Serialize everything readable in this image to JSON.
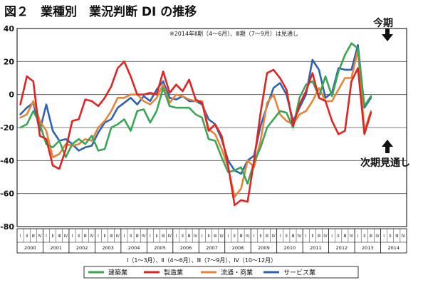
{
  "chart_data": {
    "type": "line",
    "title": "図２　業種別　業況判断 DI の推移",
    "note": "※2014年Ⅱ期（4〜6月）、Ⅲ期（7〜9月）は見通し",
    "ylim": [
      -80,
      40
    ],
    "yticks": [
      40,
      20,
      0,
      -20,
      -40,
      -60,
      -80
    ],
    "quarter_labels": [
      "Ⅰ",
      "Ⅱ",
      "Ⅲ",
      "Ⅳ"
    ],
    "years": [
      "2000",
      "2001",
      "2002",
      "2003",
      "2004",
      "2005",
      "2006",
      "2007",
      "2008",
      "2009",
      "2010",
      "2011",
      "2012",
      "2013",
      "2014"
    ],
    "caption": "Ⅰ（1〜3月）、Ⅱ（4〜6月）、Ⅲ（7〜9月）、Ⅳ（10〜12月）",
    "annotations": {
      "top": "今期",
      "bottom": "次期見通し"
    },
    "series": [
      {
        "name": "建築業",
        "color": "#3aa655",
        "values": [
          -20,
          -18,
          -10,
          -18,
          -30,
          -32,
          -28,
          -38,
          -30,
          -27,
          -30,
          -25,
          -34,
          -33,
          -20,
          -18,
          -15,
          -22,
          -10,
          -9,
          -17,
          -10,
          4,
          -7,
          -8,
          -8,
          -8,
          -12,
          -14,
          -27,
          -28,
          -38,
          -47,
          -46,
          -44,
          -54,
          -41,
          -32,
          -20,
          -15,
          -10,
          -11,
          -20,
          -2,
          6,
          8,
          -1,
          11,
          -1,
          14,
          24,
          31,
          28,
          -7,
          -1
        ]
      },
      {
        "name": "製造業",
        "color": "#e02424",
        "values": [
          -6,
          11,
          8,
          -25,
          -27,
          -43,
          -45,
          -33,
          -16,
          -15,
          -3,
          -4,
          -7,
          -2,
          5,
          16,
          20,
          11,
          0,
          0,
          1,
          0,
          14,
          1,
          6,
          2,
          9,
          -3,
          -5,
          -22,
          -18,
          -25,
          -43,
          -67,
          -64,
          -65,
          -40,
          -11,
          13,
          15,
          10,
          3,
          -19,
          -6,
          2,
          13,
          -2,
          -4,
          -16,
          -24,
          -22,
          8,
          16,
          -24,
          -11
        ]
      },
      {
        "name": "流通・商業",
        "color": "#e8843a",
        "values": [
          -14,
          -12,
          -4,
          -16,
          -22,
          -38,
          -36,
          -30,
          -31,
          -30,
          -27,
          -28,
          -20,
          -16,
          -10,
          -2,
          -2,
          0,
          0,
          -4,
          -6,
          -2,
          6,
          -5,
          0,
          -1,
          -3,
          -4,
          -4,
          -21,
          -24,
          -33,
          -44,
          -62,
          -57,
          -40,
          -44,
          -28,
          -5,
          0,
          -12,
          -16,
          -18,
          -12,
          -10,
          -4,
          4,
          -4,
          -4,
          3,
          10,
          10,
          27,
          -22,
          -10
        ]
      },
      {
        "name": "サービス業",
        "color": "#2f63b0",
        "values": [
          -12,
          -8,
          -5,
          -22,
          -6,
          -22,
          -28,
          -27,
          -30,
          -34,
          -32,
          -31,
          -23,
          -17,
          -15,
          -8,
          -5,
          -2,
          -6,
          -1,
          -4,
          3,
          8,
          -2,
          -3,
          -1,
          -4,
          -4,
          -6,
          -15,
          -18,
          -27,
          -40,
          -46,
          -48,
          -40,
          -37,
          -19,
          -7,
          4,
          7,
          0,
          -16,
          -8,
          0,
          21,
          15,
          -2,
          1,
          16,
          15,
          15,
          30,
          -8,
          -2
        ]
      }
    ]
  }
}
